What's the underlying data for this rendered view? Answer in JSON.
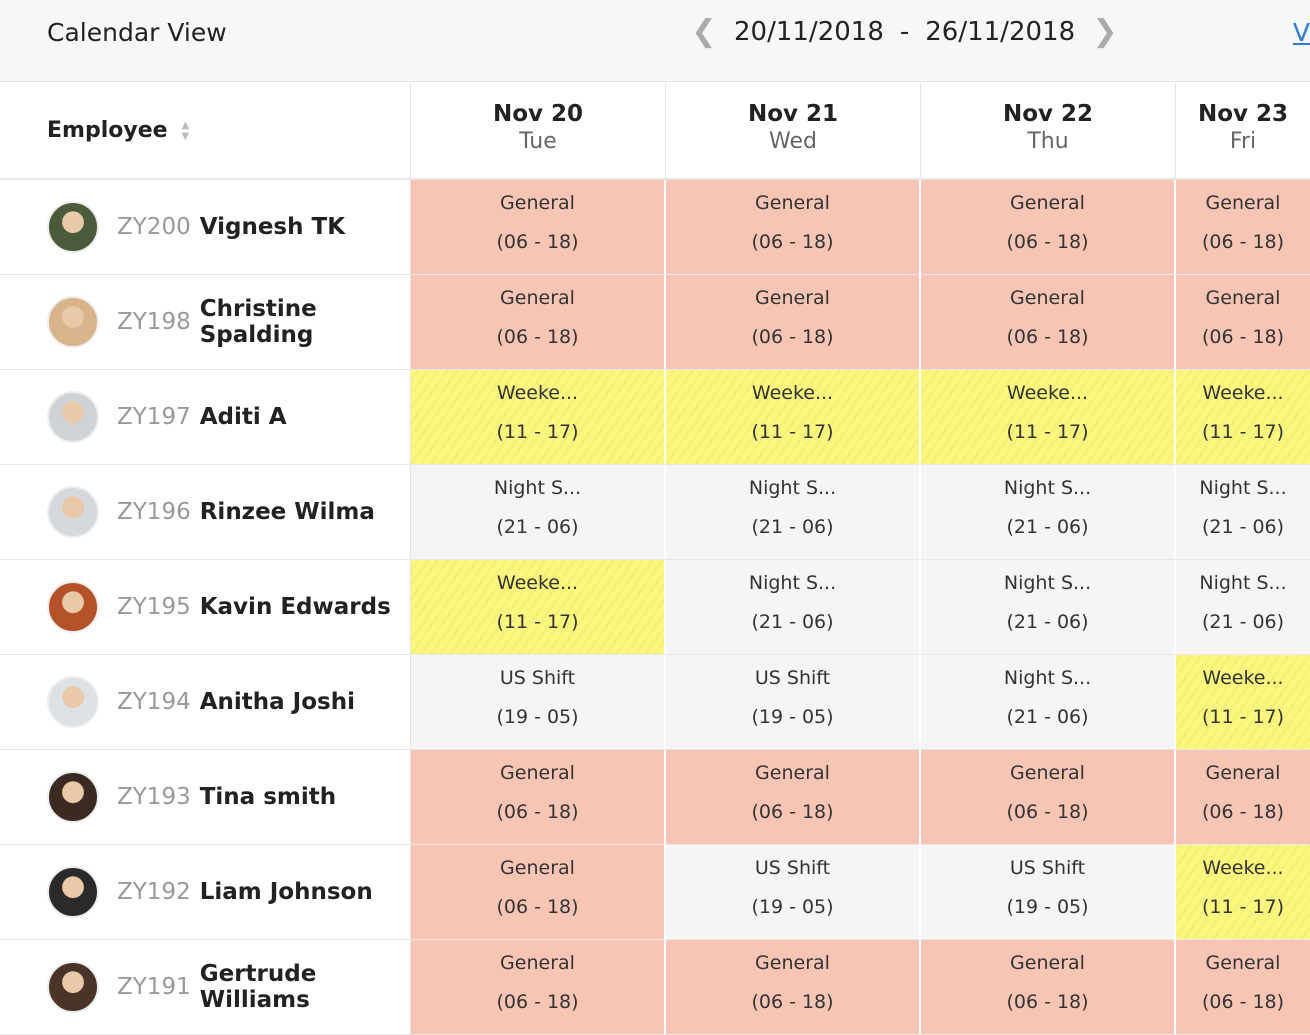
{
  "header": {
    "title": "Calendar View",
    "range_start": "20/11/2018",
    "range_sep": "-",
    "range_end": "26/11/2018",
    "link": "V"
  },
  "table": {
    "employee_header": "Employee",
    "days": [
      {
        "date": "Nov 20",
        "weekday": "Tue"
      },
      {
        "date": "Nov 21",
        "weekday": "Wed"
      },
      {
        "date": "Nov 22",
        "weekday": "Thu"
      },
      {
        "date": "Nov 23",
        "weekday": "Fri"
      }
    ],
    "rows": [
      {
        "code": "ZY200",
        "name": "Vignesh TK",
        "avatar": "#4a5a3a",
        "shifts": [
          {
            "n": "General",
            "t": "(06 - 18)",
            "k": "general"
          },
          {
            "n": "General",
            "t": "(06 - 18)",
            "k": "general"
          },
          {
            "n": "General",
            "t": "(06 - 18)",
            "k": "general"
          },
          {
            "n": "General",
            "t": "(06 - 18)",
            "k": "general"
          }
        ]
      },
      {
        "code": "ZY198",
        "name": "Christine Spalding",
        "avatar": "#d9b48a",
        "shifts": [
          {
            "n": "General",
            "t": "(06 - 18)",
            "k": "general"
          },
          {
            "n": "General",
            "t": "(06 - 18)",
            "k": "general"
          },
          {
            "n": "General",
            "t": "(06 - 18)",
            "k": "general"
          },
          {
            "n": "General",
            "t": "(06 - 18)",
            "k": "general"
          }
        ]
      },
      {
        "code": "ZY197",
        "name": "Aditi A",
        "avatar": "#cfd3d8",
        "shifts": [
          {
            "n": "Weeke...",
            "t": "(11 - 17)",
            "k": "weekend"
          },
          {
            "n": "Weeke...",
            "t": "(11 - 17)",
            "k": "weekend"
          },
          {
            "n": "Weeke...",
            "t": "(11 - 17)",
            "k": "weekend"
          },
          {
            "n": "Weeke...",
            "t": "(11 - 17)",
            "k": "weekend"
          }
        ]
      },
      {
        "code": "ZY196",
        "name": "Rinzee Wilma",
        "avatar": "#d5d8dc",
        "shifts": [
          {
            "n": "Night S...",
            "t": "(21 - 06)",
            "k": "night"
          },
          {
            "n": "Night S...",
            "t": "(21 - 06)",
            "k": "night"
          },
          {
            "n": "Night S...",
            "t": "(21 - 06)",
            "k": "night"
          },
          {
            "n": "Night S...",
            "t": "(21 - 06)",
            "k": "night"
          }
        ]
      },
      {
        "code": "ZY195",
        "name": "Kavin Edwards",
        "avatar": "#b5522a",
        "shifts": [
          {
            "n": "Weeke...",
            "t": "(11 - 17)",
            "k": "weekend"
          },
          {
            "n": "Night S...",
            "t": "(21 - 06)",
            "k": "night"
          },
          {
            "n": "Night S...",
            "t": "(21 - 06)",
            "k": "night"
          },
          {
            "n": "Night S...",
            "t": "(21 - 06)",
            "k": "night"
          }
        ]
      },
      {
        "code": "ZY194",
        "name": "Anitha Joshi",
        "avatar": "#dde0e4",
        "shifts": [
          {
            "n": "US Shift",
            "t": "(19 - 05)",
            "k": "night"
          },
          {
            "n": "US Shift",
            "t": "(19 - 05)",
            "k": "night"
          },
          {
            "n": "Night S...",
            "t": "(21 - 06)",
            "k": "night"
          },
          {
            "n": "Weeke...",
            "t": "(11 - 17)",
            "k": "weekend"
          }
        ]
      },
      {
        "code": "ZY193",
        "name": "Tina smith",
        "avatar": "#3a2a22",
        "shifts": [
          {
            "n": "General",
            "t": "(06 - 18)",
            "k": "general"
          },
          {
            "n": "General",
            "t": "(06 - 18)",
            "k": "general"
          },
          {
            "n": "General",
            "t": "(06 - 18)",
            "k": "general"
          },
          {
            "n": "General",
            "t": "(06 - 18)",
            "k": "general"
          }
        ]
      },
      {
        "code": "ZY192",
        "name": "Liam Johnson",
        "avatar": "#2a2a2a",
        "shifts": [
          {
            "n": "General",
            "t": "(06 - 18)",
            "k": "general"
          },
          {
            "n": "US Shift",
            "t": "(19 - 05)",
            "k": "night"
          },
          {
            "n": "US Shift",
            "t": "(19 - 05)",
            "k": "night"
          },
          {
            "n": "Weeke...",
            "t": "(11 - 17)",
            "k": "weekend"
          }
        ]
      },
      {
        "code": "ZY191",
        "name": "Gertrude Williams",
        "avatar": "#4a3428",
        "shifts": [
          {
            "n": "General",
            "t": "(06 - 18)",
            "k": "general"
          },
          {
            "n": "General",
            "t": "(06 - 18)",
            "k": "general"
          },
          {
            "n": "General",
            "t": "(06 - 18)",
            "k": "general"
          },
          {
            "n": "General",
            "t": "(06 - 18)",
            "k": "general"
          }
        ]
      }
    ]
  },
  "colors": {
    "general": "#f8c5b5",
    "weekend": "#fbf77d",
    "night": "#f5f5f5",
    "link": "#2f7bd8"
  }
}
